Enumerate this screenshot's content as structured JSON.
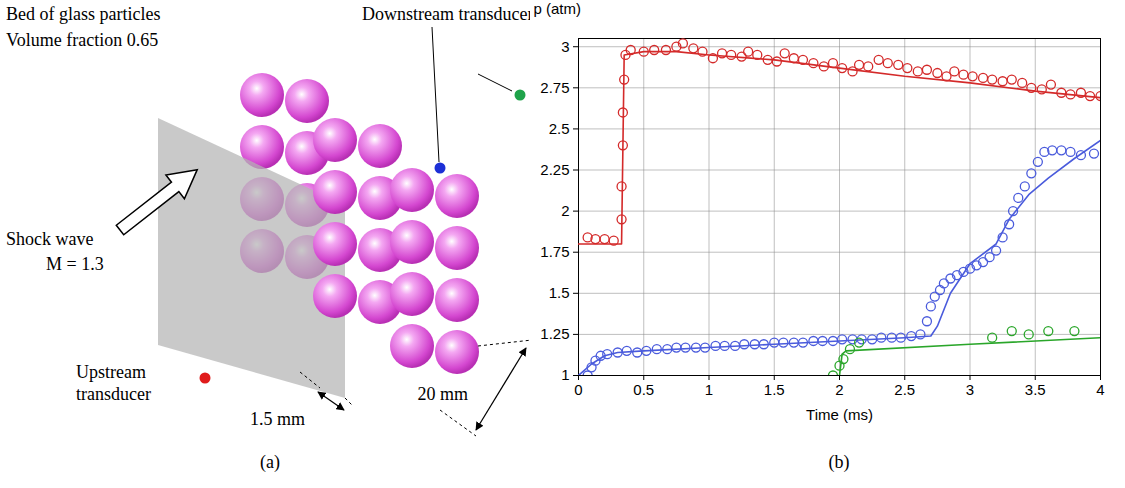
{
  "diagram": {
    "title_lines": [
      "Bed of glass particles",
      "Volume fraction 0.65"
    ],
    "downstream_label": "Downstream transducers",
    "shock_lines": [
      "Shock wave",
      "M = 1.3"
    ],
    "upstream_lines": [
      "Upstream",
      "transducer"
    ],
    "depth_label": "1.5 mm",
    "width_label": "20 mm"
  },
  "panel_labels": [
    "(a)",
    "(b)"
  ],
  "chart_data": {
    "type": "line",
    "x_label": "Time (ms)",
    "y_label": "p (atm)",
    "xlim": [
      0,
      4
    ],
    "ylim": [
      1,
      3.05
    ],
    "xticks": [
      0,
      0.5,
      1,
      1.5,
      2,
      2.5,
      3,
      3.5,
      4
    ],
    "yticks": [
      1,
      1.25,
      1.5,
      1.75,
      2,
      2.25,
      2.5,
      2.75,
      3
    ],
    "grid": true,
    "series": [
      {
        "type": "scatter",
        "marker": "circle",
        "color": "#d42a2a",
        "x": [
          0.07,
          0.13,
          0.2,
          0.27,
          0.33,
          0.33,
          0.34,
          0.34,
          0.35,
          0.36,
          0.4,
          0.5,
          0.58,
          0.67,
          0.75,
          0.8,
          0.88,
          0.95,
          1.03,
          1.1,
          1.17,
          1.25,
          1.3,
          1.37,
          1.45,
          1.52,
          1.58,
          1.65,
          1.72,
          1.8,
          1.88,
          1.95,
          2.02,
          2.1,
          2.15,
          2.22,
          2.3,
          2.37,
          2.45,
          2.52,
          2.6,
          2.67,
          2.75,
          2.82,
          2.88,
          2.95,
          3.02,
          3.1,
          3.17,
          3.25,
          3.32,
          3.4,
          3.47,
          3.55,
          3.62,
          3.7,
          3.77,
          3.85,
          3.92,
          4.0
        ],
        "values": [
          1.84,
          1.83,
          1.83,
          1.82,
          1.95,
          2.15,
          2.4,
          2.6,
          2.8,
          2.95,
          2.98,
          2.97,
          2.98,
          2.98,
          3.0,
          3.02,
          2.99,
          2.97,
          2.93,
          2.96,
          2.95,
          2.94,
          2.97,
          2.95,
          2.92,
          2.91,
          2.96,
          2.93,
          2.92,
          2.9,
          2.88,
          2.9,
          2.87,
          2.85,
          2.89,
          2.88,
          2.92,
          2.9,
          2.89,
          2.87,
          2.85,
          2.86,
          2.84,
          2.82,
          2.85,
          2.83,
          2.82,
          2.81,
          2.8,
          2.79,
          2.8,
          2.78,
          2.75,
          2.74,
          2.77,
          2.72,
          2.71,
          2.72,
          2.7,
          2.7
        ]
      },
      {
        "type": "line",
        "line_style": "solid",
        "color": "#d42a2a",
        "x": [
          0,
          0.33,
          0.35,
          0.5,
          0.75,
          1,
          1.5,
          2,
          2.5,
          3,
          3.5,
          4
        ],
        "values": [
          1.8,
          1.8,
          2.95,
          2.97,
          2.97,
          2.95,
          2.92,
          2.87,
          2.82,
          2.78,
          2.73,
          2.69
        ]
      },
      {
        "type": "scatter",
        "marker": "circle",
        "color": "#4a5bdc",
        "x": [
          0.07,
          0.1,
          0.13,
          0.17,
          0.22,
          0.3,
          0.37,
          0.45,
          0.52,
          0.6,
          0.68,
          0.75,
          0.82,
          0.9,
          0.97,
          1.05,
          1.12,
          1.2,
          1.27,
          1.35,
          1.42,
          1.5,
          1.57,
          1.65,
          1.72,
          1.8,
          1.87,
          1.95,
          2.02,
          2.1,
          2.17,
          2.25,
          2.32,
          2.4,
          2.47,
          2.55,
          2.62,
          2.67,
          2.7,
          2.73,
          2.77,
          2.8,
          2.85,
          2.9,
          2.95,
          3.0,
          3.05,
          3.1,
          3.15,
          3.2,
          3.25,
          3.3,
          3.33,
          3.37,
          3.42,
          3.47,
          3.52,
          3.57,
          3.63,
          3.7,
          3.77,
          3.85,
          3.95
        ],
        "values": [
          1.0,
          1.05,
          1.09,
          1.12,
          1.13,
          1.14,
          1.15,
          1.14,
          1.15,
          1.16,
          1.16,
          1.17,
          1.17,
          1.17,
          1.17,
          1.18,
          1.18,
          1.18,
          1.19,
          1.19,
          1.19,
          1.2,
          1.2,
          1.2,
          1.2,
          1.21,
          1.21,
          1.21,
          1.22,
          1.22,
          1.22,
          1.22,
          1.23,
          1.23,
          1.23,
          1.24,
          1.25,
          1.33,
          1.42,
          1.48,
          1.52,
          1.56,
          1.59,
          1.61,
          1.63,
          1.65,
          1.67,
          1.69,
          1.72,
          1.76,
          1.84,
          1.92,
          2.0,
          2.08,
          2.15,
          2.23,
          2.3,
          2.36,
          2.37,
          2.37,
          2.36,
          2.34,
          2.35
        ]
      },
      {
        "type": "line",
        "line_style": "solid",
        "color": "#4a5bdc",
        "x": [
          0,
          0.1,
          0.2,
          0.3,
          0.5,
          1,
          1.5,
          2,
          2.5,
          2.7,
          2.75,
          2.85,
          3.0,
          3.2,
          3.3,
          3.45,
          3.6,
          3.8,
          4.0
        ],
        "values": [
          1.0,
          1.07,
          1.12,
          1.14,
          1.15,
          1.17,
          1.19,
          1.21,
          1.23,
          1.24,
          1.3,
          1.5,
          1.68,
          1.8,
          1.95,
          2.1,
          2.2,
          2.32,
          2.43
        ]
      },
      {
        "type": "scatter",
        "marker": "circle",
        "color": "#2aa62a",
        "x": [
          1.95,
          2.0,
          2.03,
          2.08,
          2.15,
          3.17,
          3.32,
          3.45,
          3.6,
          3.8
        ],
        "values": [
          1.0,
          1.06,
          1.1,
          1.16,
          1.2,
          1.23,
          1.27,
          1.25,
          1.27,
          1.27
        ]
      },
      {
        "type": "line",
        "line_style": "solid",
        "color": "#2aa62a",
        "x": [
          2.0,
          2.02,
          2.05,
          3,
          4
        ],
        "values": [
          1.0,
          1.13,
          1.15,
          1.19,
          1.23
        ]
      }
    ]
  }
}
